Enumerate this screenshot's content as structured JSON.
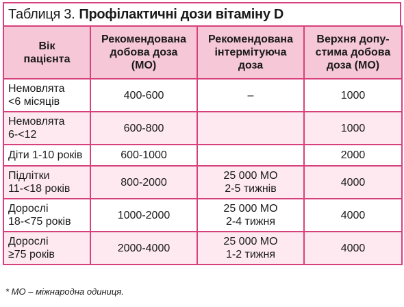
{
  "title": {
    "prefix": "Таблиця 3.",
    "main": "Профілактичні дози вітаміну D"
  },
  "table": {
    "headers": [
      [
        "Вік",
        "пацієнта"
      ],
      [
        "Рекомендована",
        "добова доза",
        "(МО)"
      ],
      [
        "Рекомендована",
        "інтермітуюча",
        "доза"
      ],
      [
        "Верхня допу-",
        "стима добова",
        "доза (МО)"
      ]
    ],
    "rows": [
      {
        "age": [
          "Немовлята",
          "<6 місяців"
        ],
        "daily": "400-600",
        "intermittent": [
          "–"
        ],
        "upper": "1000"
      },
      {
        "age": [
          "Немовлята",
          "6-<12"
        ],
        "daily": "600-800",
        "intermittent": [],
        "upper": "1000"
      },
      {
        "age": [
          "Діти 1-10 років"
        ],
        "daily": "600-1000",
        "intermittent": [],
        "upper": "2000"
      },
      {
        "age": [
          "Підлітки",
          "11-<18 років"
        ],
        "daily": "800-2000",
        "intermittent": [
          "25 000 МО",
          "2-5 тижнів"
        ],
        "upper": "4000"
      },
      {
        "age": [
          "Дорослі",
          "18-<75 років"
        ],
        "daily": "1000-2000",
        "intermittent": [
          "25 000 МО",
          "2-4 тижня"
        ],
        "upper": "4000"
      },
      {
        "age": [
          "Дорослі",
          "≥75 років"
        ],
        "daily": "2000-4000",
        "intermittent": [
          "25 000 МО",
          "1-2 тижня"
        ],
        "upper": "4000"
      }
    ]
  },
  "footnote": "* МО – міжнародна одиниця."
}
